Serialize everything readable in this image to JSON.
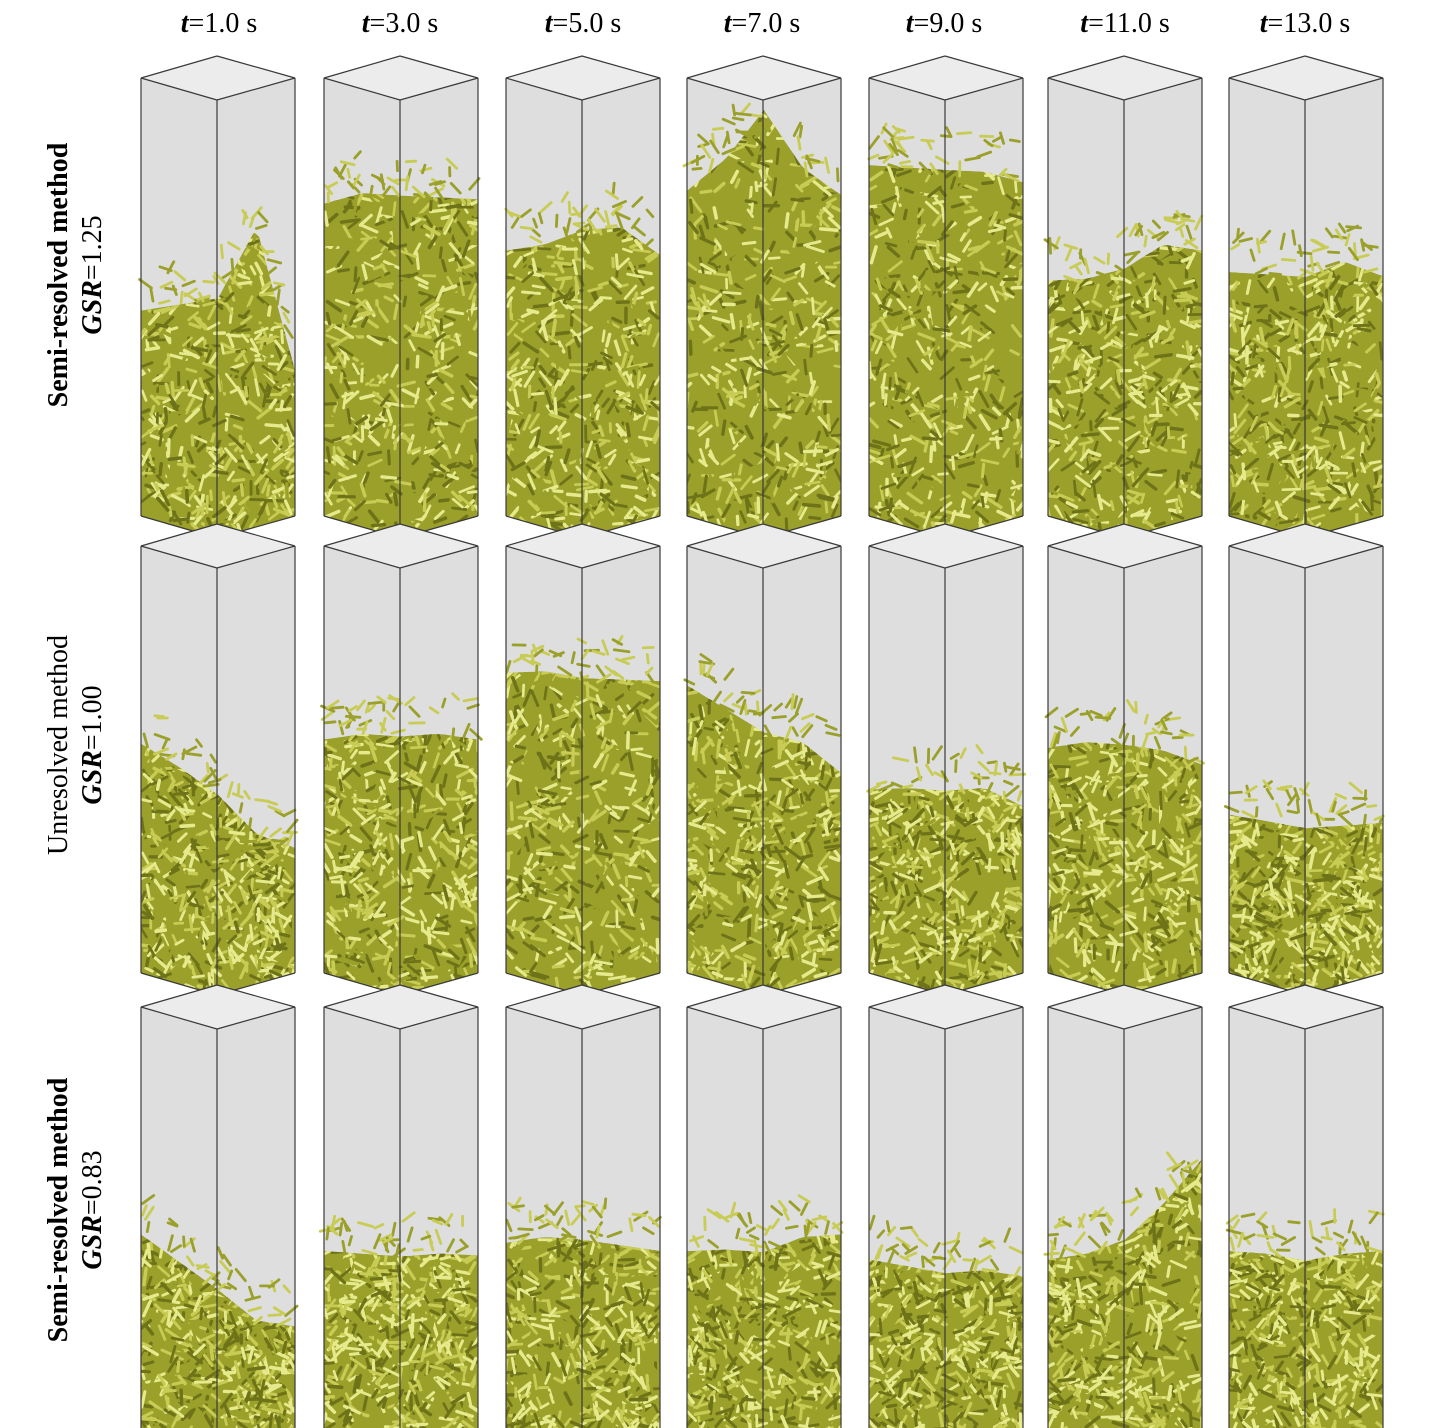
{
  "columns": [
    {
      "var": "t",
      "value": "=1.0 s"
    },
    {
      "var": "t",
      "value": "=3.0 s"
    },
    {
      "var": "t",
      "value": "=5.0 s"
    },
    {
      "var": "t",
      "value": "=7.0 s"
    },
    {
      "var": "t",
      "value": "=9.0 s"
    },
    {
      "var": "t",
      "value": "=11.0 s"
    },
    {
      "var": "t",
      "value": "=13.0 s"
    }
  ],
  "rows": [
    {
      "method": "Semi-resolved method",
      "gsr_var": "GSR",
      "gsr_value": "=1.25",
      "bed_profiles": [
        [
          0.48,
          0.52,
          0.56,
          0.7,
          0.34
        ],
        [
          0.73,
          0.78,
          0.8,
          0.77,
          0.74
        ],
        [
          0.62,
          0.66,
          0.72,
          0.7,
          0.61
        ],
        [
          0.76,
          0.86,
          1.0,
          0.84,
          0.75
        ],
        [
          0.82,
          0.84,
          0.86,
          0.83,
          0.78
        ],
        [
          0.55,
          0.58,
          0.63,
          0.66,
          0.62
        ],
        [
          0.57,
          0.59,
          0.61,
          0.62,
          0.56
        ]
      ]
    },
    {
      "method": "Unresolved method",
      "gsr_var": "GSR",
      "gsr_value": "=1.00",
      "bed_profiles": [
        [
          0.55,
          0.52,
          0.48,
          0.36,
          0.3
        ],
        [
          0.56,
          0.6,
          0.62,
          0.6,
          0.56
        ],
        [
          0.72,
          0.75,
          0.76,
          0.73,
          0.7
        ],
        [
          0.69,
          0.66,
          0.63,
          0.58,
          0.48
        ],
        [
          0.44,
          0.47,
          0.49,
          0.47,
          0.4
        ],
        [
          0.54,
          0.58,
          0.6,
          0.56,
          0.5
        ],
        [
          0.38,
          0.39,
          0.4,
          0.38,
          0.36
        ]
      ]
    },
    {
      "method": "Semi-resolved method",
      "gsr_var": "GSR",
      "gsr_value": "=0.83",
      "bed_profiles": [
        [
          0.48,
          0.44,
          0.4,
          0.3,
          0.26
        ],
        [
          0.44,
          0.46,
          0.48,
          0.46,
          0.43
        ],
        [
          0.46,
          0.5,
          0.52,
          0.48,
          0.44
        ],
        [
          0.44,
          0.47,
          0.49,
          0.5,
          0.48
        ],
        [
          0.42,
          0.43,
          0.44,
          0.42,
          0.38
        ],
        [
          0.42,
          0.46,
          0.52,
          0.58,
          0.66
        ],
        [
          0.44,
          0.46,
          0.47,
          0.46,
          0.44
        ]
      ]
    }
  ],
  "colors": {
    "box_fill": "#dedede",
    "box_top": "#ececec",
    "box_edge": "#3a3a3a",
    "particle_dark": "#6e7218",
    "particle_mid": "#9aa02a",
    "particle_light": "#c8cc55",
    "particle_highlight": "#e6ea8c"
  }
}
